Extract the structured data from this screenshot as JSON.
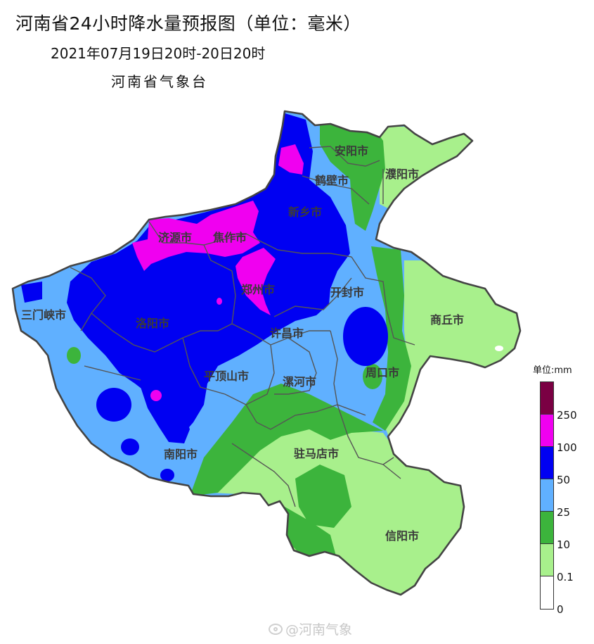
{
  "header": {
    "title": "河南省24小时降水量预报图（单位：毫米）",
    "subtitle": "2021年07月19日20时-20日20时",
    "agency": "河南省气象台"
  },
  "cities": [
    {
      "id": "anyang",
      "name": "安阳市"
    },
    {
      "id": "hebi",
      "name": "鹤壁市"
    },
    {
      "id": "puyang",
      "name": "濮阳市"
    },
    {
      "id": "xinxiang",
      "name": "新乡市"
    },
    {
      "id": "jiyuan",
      "name": "济源市"
    },
    {
      "id": "jiaozuo",
      "name": "焦作市"
    },
    {
      "id": "sanmenxia",
      "name": "三门峡市"
    },
    {
      "id": "luoyang",
      "name": "洛阳市"
    },
    {
      "id": "zhengzhou",
      "name": "郑州市"
    },
    {
      "id": "kaifeng",
      "name": "开封市"
    },
    {
      "id": "shangqiu",
      "name": "商丘市"
    },
    {
      "id": "xuchang",
      "name": "许昌市"
    },
    {
      "id": "zhoukou",
      "name": "周口市"
    },
    {
      "id": "pingdingshan",
      "name": "平顶山市"
    },
    {
      "id": "luohe",
      "name": "漯河市"
    },
    {
      "id": "nanyang",
      "name": "南阳市"
    },
    {
      "id": "zhumadian",
      "name": "驻马店市"
    },
    {
      "id": "xinyang",
      "name": "信阳市"
    }
  ],
  "legend": {
    "title": "单位:mm",
    "classes": [
      {
        "label": "250",
        "color": "#7a0043"
      },
      {
        "label": "100",
        "color": "#f000f0"
      },
      {
        "label": "50",
        "color": "#0000f2"
      },
      {
        "label": "25",
        "color": "#60b0ff"
      },
      {
        "label": "10",
        "color": "#3cb43c"
      },
      {
        "label": "0.1",
        "color": "#a8f08c"
      },
      {
        "label": "0",
        "color": "#ffffff"
      }
    ]
  },
  "watermark": "@河南气象"
}
